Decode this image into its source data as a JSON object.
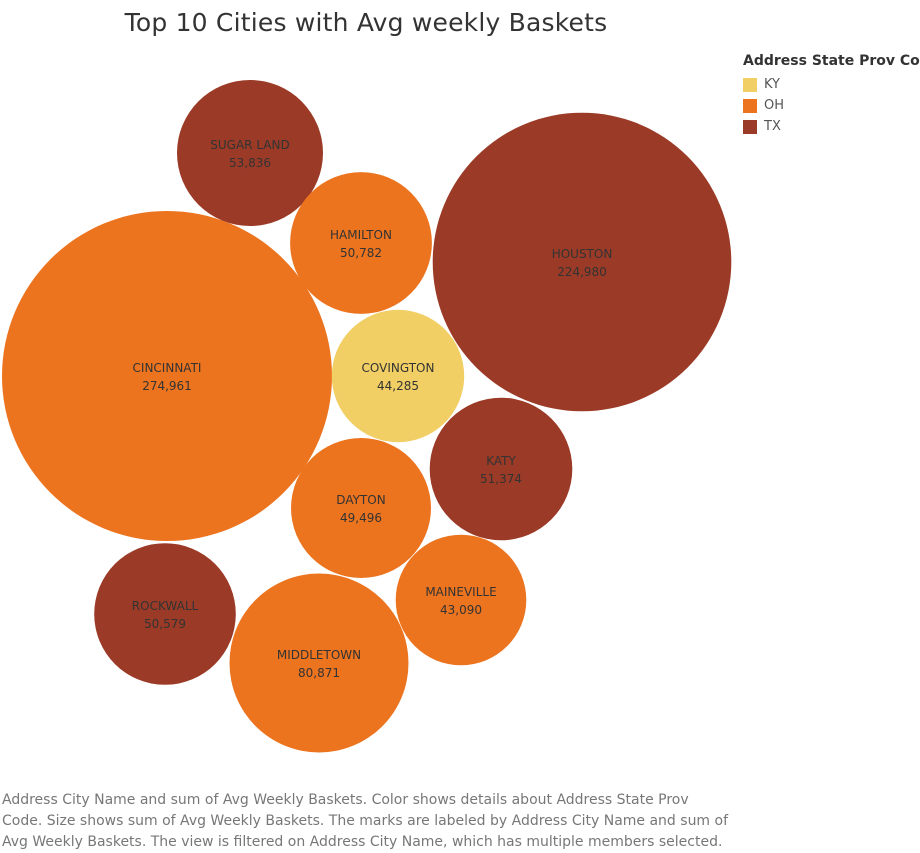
{
  "title": "Top 10 Cities with Avg weekly Baskets",
  "legend": {
    "title": "Address State Prov Code",
    "items": [
      {
        "label": "KY",
        "color": "#f1cf65"
      },
      {
        "label": "OH",
        "color": "#ec741f"
      },
      {
        "label": "TX",
        "color": "#9b3a26"
      }
    ]
  },
  "caption": "Address City Name and sum of Avg Weekly Baskets.  Color shows details about Address State Prov Code.  Size shows sum of Avg Weekly Baskets.  The marks are labeled by Address City Name and sum of Avg Weekly Baskets. The view is filtered on Address City Name, which has multiple members selected.",
  "chart_data": {
    "type": "packed-bubble",
    "title": "Top 10 Cities with Avg weekly Baskets",
    "size_measure": "sum of Avg Weekly Baskets",
    "color_dimension": "Address State Prov Code",
    "points": [
      {
        "city": "CINCINNATI",
        "value": 274961,
        "value_label": "274,961",
        "state": "OH"
      },
      {
        "city": "HOUSTON",
        "value": 224980,
        "value_label": "224,980",
        "state": "TX"
      },
      {
        "city": "MIDDLETOWN",
        "value": 80871,
        "value_label": "80,871",
        "state": "OH"
      },
      {
        "city": "SUGAR LAND",
        "value": 53836,
        "value_label": "53,836",
        "state": "TX"
      },
      {
        "city": "KATY",
        "value": 51374,
        "value_label": "51,374",
        "state": "TX"
      },
      {
        "city": "HAMILTON",
        "value": 50782,
        "value_label": "50,782",
        "state": "OH"
      },
      {
        "city": "ROCKWALL",
        "value": 50579,
        "value_label": "50,579",
        "state": "TX"
      },
      {
        "city": "DAYTON",
        "value": 49496,
        "value_label": "49,496",
        "state": "OH"
      },
      {
        "city": "COVINGTON",
        "value": 44285,
        "value_label": "44,285",
        "state": "KY"
      },
      {
        "city": "MAINEVILLE",
        "value": 43090,
        "value_label": "43,090",
        "state": "OH"
      }
    ]
  }
}
